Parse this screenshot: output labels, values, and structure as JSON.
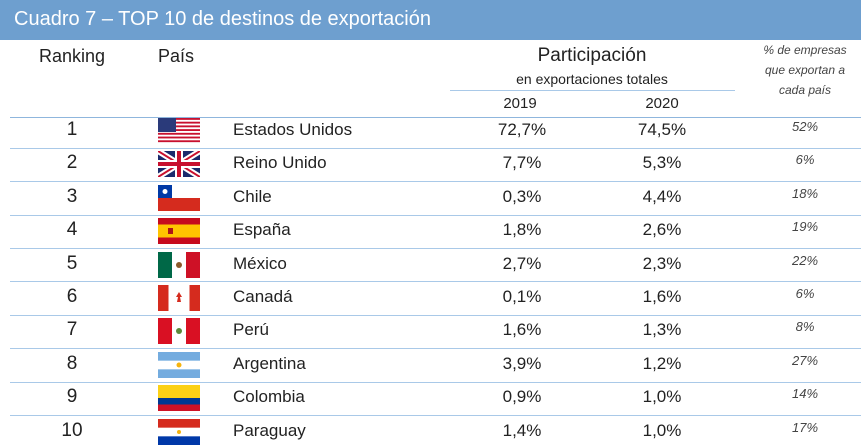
{
  "header": {
    "title": "Cuadro 7 – TOP 10 de destinos de exportación",
    "ranking": "Ranking",
    "country": "País",
    "participation": "Participación",
    "participation_sub": "en exportaciones totales",
    "year_2019": "2019",
    "year_2020": "2020",
    "share_label": [
      "% de empresas",
      "que exportan a",
      "cada país"
    ]
  },
  "table": {
    "rows": [
      {
        "rank": 1,
        "country": "Estados Unidos",
        "y2019": "72,7%",
        "y2020": "74,5%",
        "share": "52%"
      },
      {
        "rank": 2,
        "country": "Reino Unido",
        "y2019": "7,7%",
        "y2020": "5,3%",
        "share": "6%"
      },
      {
        "rank": 3,
        "country": "Chile",
        "y2019": "0,3%",
        "y2020": "4,4%",
        "share": "18%"
      },
      {
        "rank": 4,
        "country": "España",
        "y2019": "1,8%",
        "y2020": "2,6%",
        "share": "19%"
      },
      {
        "rank": 5,
        "country": "México",
        "y2019": "2,7%",
        "y2020": "2,3%",
        "share": "22%"
      },
      {
        "rank": 6,
        "country": "Canadá",
        "y2019": "0,1%",
        "y2020": "1,6%",
        "share": "6%"
      },
      {
        "rank": 7,
        "country": "Perú",
        "y2019": "1,6%",
        "y2020": "1,3%",
        "share": "8%"
      },
      {
        "rank": 8,
        "country": "Argentina",
        "y2019": "3,9%",
        "y2020": "1,2%",
        "share": "27%"
      },
      {
        "rank": 9,
        "country": "Colombia",
        "y2019": "0,9%",
        "y2020": "1,0%",
        "share": "14%"
      },
      {
        "rank": 10,
        "country": "Paraguay",
        "y2019": "1,4%",
        "y2020": "1,0%",
        "share": "17%"
      }
    ]
  }
}
